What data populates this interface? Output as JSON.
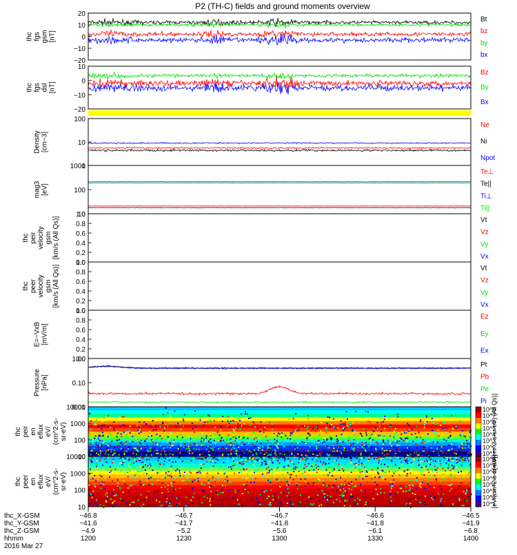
{
  "title": "P2 (TH-C) fields and ground moments overview",
  "colors": {
    "black": "#000000",
    "red": "#ff0000",
    "green": "#00e000",
    "blue": "#0000ff",
    "yellow": "#ffff00"
  },
  "chart_data": [
    {
      "type": "line",
      "ylabel_lines": [
        "thc",
        "fgs",
        "gsm",
        "[nT]"
      ],
      "ylim": [
        -20,
        20
      ],
      "y_ticks": [
        "20",
        "10",
        "0",
        "−10",
        "−20"
      ],
      "series": [
        {
          "name": "Bt",
          "color": "#000000",
          "level": 12,
          "noise": 2.5
        },
        {
          "name": "bz",
          "color": "#ff0000",
          "level": 2,
          "noise": 3
        },
        {
          "name": "by",
          "color": "#00e000",
          "level": 10,
          "noise": 2
        },
        {
          "name": "bx",
          "color": "#0000ff",
          "level": -3,
          "noise": 3.5
        }
      ]
    },
    {
      "type": "line",
      "ylabel_lines": [
        "thc",
        "fgs",
        "dsl",
        "[nT]"
      ],
      "ylim": [
        -25,
        20
      ],
      "y_ticks": [
        "10",
        "0",
        "−10",
        "−20"
      ],
      "series": [
        {
          "name": "Bz",
          "color": "#ff0000",
          "level": 2,
          "noise": 5
        },
        {
          "name": "By",
          "color": "#00e000",
          "level": 10,
          "noise": 3
        },
        {
          "name": "Bx",
          "color": "#0000ff",
          "level": -3,
          "noise": 5
        }
      ]
    },
    {
      "type": "line",
      "ylabel_lines": [
        "Density",
        "[cm−3]"
      ],
      "ylim_log": [
        1,
        150
      ],
      "y_ticks": [
        "100",
        "10",
        "1"
      ],
      "series": [
        {
          "name": "Ne",
          "color": "#ff0000",
          "level": 6.5,
          "noise": 0.05
        },
        {
          "name": "Ni",
          "color": "#000000",
          "level": 5,
          "noise": 0.08
        },
        {
          "name": "Npot",
          "color": "#0000ff",
          "level": 11,
          "noise": 0.05
        }
      ]
    },
    {
      "type": "line",
      "ylabel_lines": [
        "mag3",
        "[eV]"
      ],
      "ylim_log": [
        7,
        12000
      ],
      "y_ticks": [
        "1000",
        "100",
        "10"
      ],
      "series": [
        {
          "name": "Te⊥",
          "color": "#ff0000",
          "level": 23,
          "noise": 0.02
        },
        {
          "name": "Te||",
          "color": "#000000",
          "level": 18,
          "noise": 0.02
        },
        {
          "name": "Ti⊥",
          "color": "#0000ff",
          "level": 950,
          "noise": 0.02
        },
        {
          "name": "Ti||",
          "color": "#00e000",
          "level": 780,
          "noise": 0.02
        }
      ]
    },
    {
      "type": "line",
      "ylabel_lines": [
        "thc",
        "peir",
        "velocity",
        "gsm",
        "[km/s (All Qs)]"
      ],
      "ylim": [
        0,
        1
      ],
      "y_ticks": [
        "1.0",
        "0.8",
        "0.6",
        "0.4",
        "0.2",
        "0.0"
      ],
      "series": [
        {
          "name": "Vt",
          "color": "#000000"
        },
        {
          "name": "Vz",
          "color": "#ff0000"
        },
        {
          "name": "Vy",
          "color": "#00e000"
        },
        {
          "name": "Vx",
          "color": "#0000ff"
        }
      ]
    },
    {
      "type": "line",
      "ylabel_lines": [
        "thc",
        "peer",
        "velocity",
        "gsm",
        "[km/s (All Qs)]"
      ],
      "ylim": [
        0,
        1
      ],
      "y_ticks": [
        "1.0",
        "0.8",
        "0.6",
        "0.4",
        "0.2",
        "0.0"
      ],
      "series": [
        {
          "name": "Vt",
          "color": "#000000"
        },
        {
          "name": "Vz",
          "color": "#ff0000"
        },
        {
          "name": "Vy",
          "color": "#00e000"
        },
        {
          "name": "Vx",
          "color": "#0000ff"
        }
      ]
    },
    {
      "type": "line",
      "ylabel_lines": [
        "E=−VxB",
        "[mV/m]"
      ],
      "ylim": [
        0,
        1
      ],
      "y_ticks": [
        "1.0",
        "0.8",
        "0.6",
        "0.4",
        "0.2",
        "0.0"
      ],
      "series": [
        {
          "name": "Ez",
          "color": "#ff0000"
        },
        {
          "name": "Ey",
          "color": "#00e000"
        },
        {
          "name": "Ex",
          "color": "#0000ff"
        }
      ]
    },
    {
      "type": "line",
      "ylabel_lines": [
        "Pressure",
        "[nPa]"
      ],
      "ylim_log": [
        0.01,
        2.5
      ],
      "y_ticks": [
        "1.00",
        "0.10",
        "0.01"
      ],
      "series": [
        {
          "name": "Pt",
          "color": "#000000",
          "level": 0.85,
          "noise": 0.04
        },
        {
          "name": "Pb",
          "color": "#ff0000",
          "level": 0.045,
          "noise": 0.1
        },
        {
          "name": "Pe",
          "color": "#00e000",
          "level": 0.017,
          "noise": 0.05
        },
        {
          "name": "Pi",
          "color": "#0000ff",
          "level": 0.8,
          "noise": 0.04
        }
      ]
    },
    {
      "type": "heatmap",
      "ylabel_lines": [
        "thc",
        "peir",
        "en",
        "eflux",
        "eV/",
        "(cm^2-s-",
        "sr-eV)"
      ],
      "y_ticks": [
        "10000",
        "1000",
        "100",
        "10"
      ],
      "colorbar_ticks": [
        "10^8",
        "10^7",
        "10^6",
        "10^5",
        "10^4",
        "10^3",
        "10^2",
        "10^1"
      ],
      "colorbar_label": "[eV/(cm^2-s-sr-eV) (All Qs)]"
    },
    {
      "type": "heatmap",
      "ylabel_lines": [
        "thc",
        "peer",
        "en",
        "eflux",
        "eV/",
        "(cm^2-s-",
        "sr-eV)"
      ],
      "y_ticks": [
        "10000",
        "1000",
        "100",
        "10"
      ],
      "colorbar_ticks": [
        "10^8",
        "10^7",
        "10^6",
        "10^5",
        "10^4",
        "10^3",
        "10^2",
        "10^1"
      ],
      "colorbar_label": "[eV/(cm^2-s-sr-eV)]"
    }
  ],
  "x_axis": {
    "rows": [
      {
        "label": "thc_X-GSM",
        "values": [
          "−46.8",
          "−46.7",
          "−46.7",
          "−46.6",
          "−46.5"
        ]
      },
      {
        "label": "thc_Y-GSM",
        "values": [
          "−41.6",
          "−41.7",
          "−41.8",
          "−41.8",
          "−41.9"
        ]
      },
      {
        "label": "thc_Z-GSM",
        "values": [
          "−4.9",
          "−5.2",
          "−5.6",
          "−6.1",
          "−6.8"
        ]
      },
      {
        "label": "hhmm",
        "values": [
          "1200",
          "1230",
          "1300",
          "1330",
          "1400"
        ]
      }
    ],
    "date": "2016 Mar 27"
  }
}
